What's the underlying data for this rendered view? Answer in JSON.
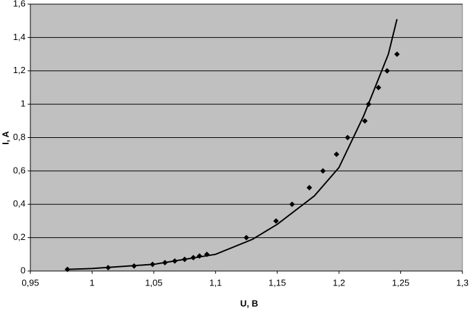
{
  "chart_data": {
    "type": "scatter",
    "xlabel": "U, B",
    "ylabel": "I, A",
    "points": {
      "color": "#000000",
      "x": [
        0.98,
        1.013,
        1.034,
        1.049,
        1.059,
        1.067,
        1.075,
        1.082,
        1.087,
        1.093,
        1.125,
        1.149,
        1.162,
        1.176,
        1.187,
        1.198,
        1.207,
        1.221,
        1.224,
        1.232,
        1.239,
        1.247
      ],
      "y": [
        0.01,
        0.02,
        0.03,
        0.04,
        0.05,
        0.06,
        0.07,
        0.08,
        0.09,
        0.1,
        0.2,
        0.3,
        0.4,
        0.5,
        0.6,
        0.7,
        0.8,
        0.9,
        1.0,
        1.1,
        1.2,
        1.3
      ]
    },
    "trend": {
      "color": "#000000",
      "x": [
        0.98,
        1.0,
        1.05,
        1.1,
        1.13,
        1.15,
        1.18,
        1.2,
        1.22,
        1.24,
        1.247
      ],
      "y": [
        0.01,
        0.015,
        0.04,
        0.1,
        0.19,
        0.28,
        0.45,
        0.62,
        0.93,
        1.3,
        1.51
      ]
    },
    "xlim": [
      0.95,
      1.3
    ],
    "xticks": [
      {
        "value": 0.95,
        "label": "0,95"
      },
      1,
      {
        "value": 1.05,
        "label": "1,05"
      },
      {
        "value": 1.1,
        "label": "1,1"
      },
      {
        "value": 1.15,
        "label": "1,15"
      },
      {
        "value": 1.2,
        "label": "1,2"
      },
      {
        "value": 1.25,
        "label": "1,25"
      },
      {
        "value": 1.3,
        "label": "1,3"
      }
    ],
    "ylim": [
      0,
      1.6
    ],
    "yticks": [
      0,
      {
        "value": 0.2,
        "label": "0,2"
      },
      {
        "value": 0.4,
        "label": "0,4"
      },
      {
        "value": 0.6,
        "label": "0,6"
      },
      {
        "value": 0.8,
        "label": "0,8"
      },
      1,
      {
        "value": 1.2,
        "label": "1,2"
      },
      {
        "value": 1.4,
        "label": "1,4"
      },
      {
        "value": 1.6,
        "label": "1,6"
      }
    ],
    "grid": true,
    "background": "#c0c0c0"
  }
}
